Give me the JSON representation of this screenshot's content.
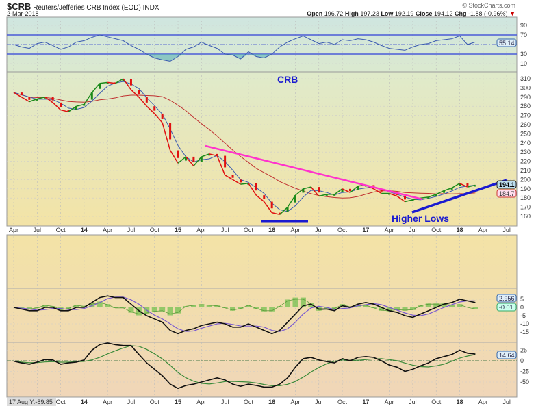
{
  "header": {
    "symbol": "$CRB",
    "name": "Reuters/Jefferies CRB Index (EOD)",
    "exchange": "INDX",
    "date": "2-Mar-2018",
    "watermark": "© StockCharts.com",
    "open_label": "Open",
    "open": "196.72",
    "high_label": "High",
    "high": "197.23",
    "low_label": "Low",
    "low": "192.19",
    "close_label": "Close",
    "close": "194.12",
    "chg_label": "Chg",
    "chg": "-1.88 (-0.96%)",
    "down_arrow": "▼"
  },
  "annotations": {
    "crb": "CRB",
    "higher_lows": "Higher Lows"
  },
  "tags": {
    "price": "194.1",
    "ma": "184.7",
    "rsi": "55.14",
    "macd": "2.956",
    "hist": "-0.01",
    "osc": "14.64"
  },
  "cursor_readout": "17 Aug Y:-89.85",
  "colors": {
    "up": "#1a8a1a",
    "down": "#e01010",
    "ma_short": "#3a5ab0",
    "ma_long": "#c03030",
    "resistance": "#ff33cc",
    "support": "#1a1ad0"
  },
  "chart_data": {
    "type": "line",
    "title": "$CRB Reuters/Jefferies CRB Index (EOD)",
    "start": "Apr 2013",
    "interval": "monthly",
    "x_ticks": [
      "Apr",
      "Jul",
      "Oct",
      "14",
      "Apr",
      "Jul",
      "Oct",
      "15",
      "Apr",
      "Jul",
      "Oct",
      "16",
      "Apr",
      "Jul",
      "Oct",
      "17",
      "Apr",
      "Jul",
      "Oct",
      "18",
      "Apr",
      "Jul"
    ],
    "price": [
      295,
      290,
      285,
      288,
      290,
      284,
      276,
      274,
      280,
      282,
      295,
      305,
      306,
      305,
      310,
      298,
      290,
      280,
      272,
      262,
      232,
      218,
      225,
      215,
      225,
      228,
      226,
      205,
      200,
      195,
      196,
      183,
      176,
      164,
      162,
      170,
      183,
      190,
      192,
      182,
      184,
      184,
      190,
      186,
      193,
      194,
      190,
      185,
      185,
      182,
      176,
      178,
      180,
      181,
      184,
      188,
      191,
      196,
      192,
      194
    ],
    "price_axis": {
      "ticks": [
        "310",
        "300",
        "290",
        "280",
        "270",
        "260",
        "250",
        "240",
        "230",
        "220",
        "210",
        "200",
        "190",
        "180",
        "170",
        "160"
      ],
      "range": [
        155,
        318
      ]
    },
    "rsi": [
      50,
      45,
      42,
      52,
      55,
      48,
      40,
      45,
      55,
      58,
      65,
      70,
      66,
      62,
      58,
      48,
      40,
      30,
      22,
      18,
      15,
      25,
      40,
      45,
      55,
      48,
      42,
      30,
      28,
      20,
      35,
      25,
      22,
      30,
      45,
      55,
      62,
      68,
      60,
      52,
      55,
      50,
      60,
      58,
      62,
      60,
      55,
      48,
      42,
      40,
      38,
      45,
      50,
      52,
      58,
      60,
      62,
      68,
      50,
      55.14
    ],
    "rsi_axis": {
      "ticks": [
        "90",
        "70",
        "30",
        "10"
      ],
      "levels": [
        70,
        50,
        30
      ]
    },
    "macd": [
      0,
      -1,
      -2,
      -2,
      0,
      0,
      -2,
      -2,
      0,
      0,
      3,
      6,
      7,
      6,
      6,
      2,
      -2,
      -5,
      -7,
      -9,
      -14,
      -16,
      -14,
      -13,
      -11,
      -10,
      -9,
      -10,
      -12,
      -12,
      -10,
      -12,
      -14,
      -16,
      -14,
      -9,
      -4,
      1,
      2,
      -1,
      -1,
      -2,
      1,
      0,
      2,
      3,
      2,
      0,
      -2,
      -3,
      -5,
      -6,
      -4,
      -2,
      0,
      2,
      3,
      5,
      4,
      3
    ],
    "macd_axis": {
      "ticks": [
        "5",
        "0",
        "-5",
        "-10",
        "-15"
      ]
    },
    "oscillator": [
      -1,
      -5,
      -8,
      -3,
      3,
      2,
      -8,
      -5,
      -3,
      2,
      25,
      38,
      42,
      38,
      36,
      36,
      15,
      -5,
      -20,
      -35,
      -55,
      -65,
      -58,
      -55,
      -50,
      -45,
      -40,
      -45,
      -55,
      -60,
      -55,
      -58,
      -62,
      -62,
      -55,
      -40,
      -15,
      5,
      8,
      2,
      -2,
      -5,
      5,
      0,
      8,
      10,
      8,
      0,
      -10,
      -15,
      -25,
      -20,
      -12,
      -5,
      5,
      10,
      15,
      25,
      18,
      16
    ],
    "osc_axis": {
      "ticks": [
        "25",
        "0",
        "-25",
        "-50"
      ]
    }
  }
}
